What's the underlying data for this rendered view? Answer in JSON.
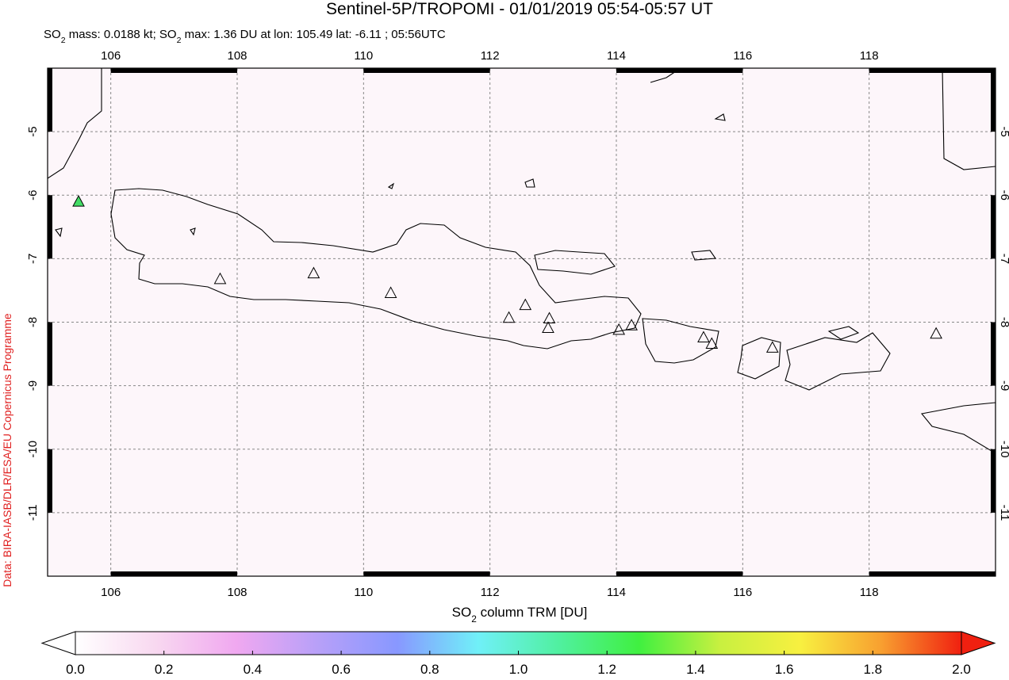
{
  "title": "Sentinel-5P/TROPOMI - 01/01/2019 05:54-05:57 UT",
  "subtitle_parts": [
    "SO",
    "2",
    " mass: 0.0188 kt; SO",
    "2",
    " max: 1.36 DU at lon: 105.49 lat: -6.11 ; 05:56UTC"
  ],
  "credit": "Data: BIRA-IASB/DLR/ESA/EU Copernicus Programme",
  "map": {
    "type": "map",
    "xlim": [
      105,
      120
    ],
    "ylim": [
      -12,
      -4
    ],
    "xticks": [
      106,
      108,
      110,
      112,
      114,
      116,
      118
    ],
    "yticks": [
      -5,
      -6,
      -7,
      -8,
      -9,
      -10,
      -11
    ],
    "grid": true,
    "volcanoes": {
      "lon": [
        107.73,
        109.21,
        110.43,
        112.3,
        112.56,
        112.94,
        112.92,
        114.04,
        114.24,
        115.38,
        115.51,
        116.47,
        119.06
      ],
      "lat": [
        -7.33,
        -7.24,
        -7.55,
        -7.94,
        -7.74,
        -7.95,
        -8.1,
        -8.13,
        -8.06,
        -8.25,
        -8.35,
        -8.41,
        -8.19
      ]
    },
    "so2_max": {
      "lon": 105.49,
      "lat": -6.11,
      "color": "#44dd66"
    }
  },
  "colorbar": {
    "label_parts": [
      "SO",
      "2",
      " column TRM [DU]"
    ],
    "lim": [
      0,
      2
    ],
    "ticks": [
      {
        "value": 0,
        "label": "0.0"
      },
      {
        "value": 0.2,
        "label": "0.2"
      },
      {
        "value": 0.4,
        "label": "0.4"
      },
      {
        "value": 0.6,
        "label": "0.6"
      },
      {
        "value": 0.8,
        "label": "0.8"
      },
      {
        "value": 1,
        "label": "1.0"
      },
      {
        "value": 1.2,
        "label": "1.2"
      },
      {
        "value": 1.4,
        "label": "1.4"
      },
      {
        "value": 1.6,
        "label": "1.6"
      },
      {
        "value": 1.8,
        "label": "1.8"
      },
      {
        "value": 2,
        "label": "2.0"
      }
    ],
    "colors": [
      "#ffffff",
      "#f8d8f0",
      "#f0a8f0",
      "#b8a0f8",
      "#8898ff",
      "#70f0f8",
      "#50f0a0",
      "#40f040",
      "#c8f040",
      "#f8f040",
      "#f8a030",
      "#f02010"
    ]
  }
}
